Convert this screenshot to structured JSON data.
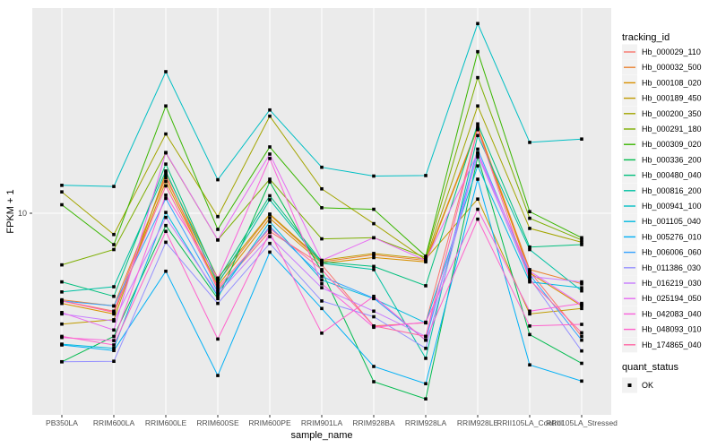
{
  "chart_data": {
    "type": "line",
    "title": "",
    "xlabel": "sample_name",
    "ylabel": "FPKM + 1",
    "y_scale": "log10",
    "y_ticks": [
      10
    ],
    "ylim_log10": [
      -0.08,
      2.1
    ],
    "grid": "major-on-white",
    "legend_position": "right",
    "categories": [
      "PB350LA",
      "RRIM600LA",
      "RRIM600LE",
      "RRIM600SE",
      "RRIM600PE",
      "RRIM901LA",
      "RRIM928BA",
      "RRIM928LA",
      "RRIM928LE",
      "RRII105LA_Control",
      "RRII105LA_Stressed"
    ],
    "series": [
      {
        "name": "Hb_000029_110",
        "color": "#F8766D",
        "values": [
          3.4,
          3.0,
          16.0,
          3.9,
          8.0,
          5.3,
          2.5,
          2.6,
          28.0,
          4.9,
          2.2
        ]
      },
      {
        "name": "Hb_000032_500",
        "color": "#EA8331",
        "values": [
          3.45,
          3.2,
          15.5,
          4.3,
          9.8,
          5.5,
          6.0,
          5.6,
          29.0,
          5.0,
          4.2
        ]
      },
      {
        "name": "Hb_000108_020",
        "color": "#D89000",
        "values": [
          3.3,
          2.9,
          14.8,
          4.1,
          9.4,
          5.4,
          5.8,
          5.5,
          28.5,
          4.8,
          3.2
        ]
      },
      {
        "name": "Hb_000189_450",
        "color": "#C09B00",
        "values": [
          2.56,
          2.7,
          16.5,
          4.5,
          9.9,
          5.6,
          6.1,
          5.7,
          11.9,
          2.9,
          3.1
        ]
      },
      {
        "name": "Hb_000200_350",
        "color": "#A3A500",
        "values": [
          13.0,
          7.7,
          26.5,
          9.6,
          33.0,
          13.5,
          8.8,
          5.65,
          37.4,
          8.3,
          7.0
        ]
      },
      {
        "name": "Hb_000291_180",
        "color": "#7CAE00",
        "values": [
          5.3,
          6.4,
          21.0,
          7.2,
          15.2,
          7.3,
          7.4,
          5.8,
          53.0,
          9.4,
          7.2
        ]
      },
      {
        "name": "Hb_000309_020",
        "color": "#39B600",
        "values": [
          11.1,
          6.8,
          37.4,
          8.2,
          22.6,
          10.7,
          10.5,
          5.9,
          72.9,
          10.2,
          7.4
        ]
      },
      {
        "name": "Hb_000336_200",
        "color": "#00BB4E",
        "values": [
          1.61,
          2.2,
          8.6,
          3.5,
          14.7,
          4.9,
          1.26,
          1.02,
          20.0,
          2.25,
          1.58
        ]
      },
      {
        "name": "Hb_000480_040",
        "color": "#00BF7D",
        "values": [
          4.3,
          3.6,
          18.3,
          4.4,
          12.4,
          5.5,
          5.2,
          4.1,
          30.0,
          6.6,
          6.8
        ]
      },
      {
        "name": "Hb_000816_200",
        "color": "#00C1A3",
        "values": [
          3.8,
          4.05,
          16.8,
          4.2,
          11.8,
          5.4,
          5.0,
          1.68,
          26.0,
          6.4,
          3.85
        ]
      },
      {
        "name": "Hb_000941_100",
        "color": "#00BFC4",
        "values": [
          14.1,
          13.9,
          57.0,
          15.1,
          35.6,
          17.6,
          15.8,
          15.9,
          103.0,
          23.9,
          24.9
        ]
      },
      {
        "name": "Hb_001105_040",
        "color": "#00BAE0",
        "values": [
          2.0,
          1.9,
          10.1,
          3.6,
          9.0,
          4.4,
          3.5,
          2.6,
          17.9,
          4.3,
          4.0
        ]
      },
      {
        "name": "Hb_005276_010",
        "color": "#00B0F6",
        "values": [
          1.98,
          1.85,
          4.9,
          1.36,
          6.2,
          3.1,
          1.52,
          1.23,
          15.2,
          1.55,
          1.27
        ]
      },
      {
        "name": "Hb_006006_060",
        "color": "#35A2FF",
        "values": [
          3.4,
          3.2,
          12.0,
          3.8,
          8.5,
          4.6,
          3.52,
          2.1,
          22.0,
          4.7,
          2.1
        ]
      },
      {
        "name": "Hb_011386_030",
        "color": "#9590FF",
        "values": [
          1.61,
          1.62,
          7.0,
          3.3,
          6.9,
          3.4,
          2.8,
          1.9,
          21.0,
          4.5,
          1.84
        ]
      },
      {
        "name": "Hb_016219_030",
        "color": "#C77CFF",
        "values": [
          2.9,
          2.66,
          9.5,
          3.7,
          7.5,
          4.0,
          3.0,
          2.2,
          20.5,
          4.6,
          4.3
        ]
      },
      {
        "name": "Hb_025194_050",
        "color": "#E76BF3",
        "values": [
          2.95,
          2.38,
          21.1,
          7.2,
          20.7,
          5.6,
          7.4,
          5.6,
          21.0,
          4.9,
          3.25
        ]
      },
      {
        "name": "Hb_042083_040",
        "color": "#FA62DB",
        "values": [
          2.17,
          2.09,
          12.5,
          4.5,
          19.6,
          4.2,
          2.46,
          2.62,
          10.5,
          3.0,
          3.3
        ]
      },
      {
        "name": "Hb_048093_010",
        "color": "#FF61CC",
        "values": [
          2.2,
          1.98,
          8.0,
          2.13,
          7.9,
          2.29,
          3.6,
          2.1,
          9.3,
          2.5,
          2.55
        ]
      },
      {
        "name": "Hb_174865_040",
        "color": "#FF67A4",
        "values": [
          3.4,
          2.96,
          14.0,
          4.0,
          8.3,
          5.0,
          2.5,
          2.2,
          28.0,
          4.4,
          2.3
        ]
      }
    ],
    "legend": {
      "series_title": "tracking_id",
      "shape_title": "quant_status",
      "shape_label": "OK"
    },
    "y_tick_labels": [
      "10"
    ]
  },
  "colors": {
    "panel_bg": "#EBEBEB",
    "gridline": "#FFFFFF",
    "axis_text": "#4D4D4D",
    "axis_title": "#000000",
    "point": "#000000",
    "legend_key_bg": "#F2F2F2"
  }
}
